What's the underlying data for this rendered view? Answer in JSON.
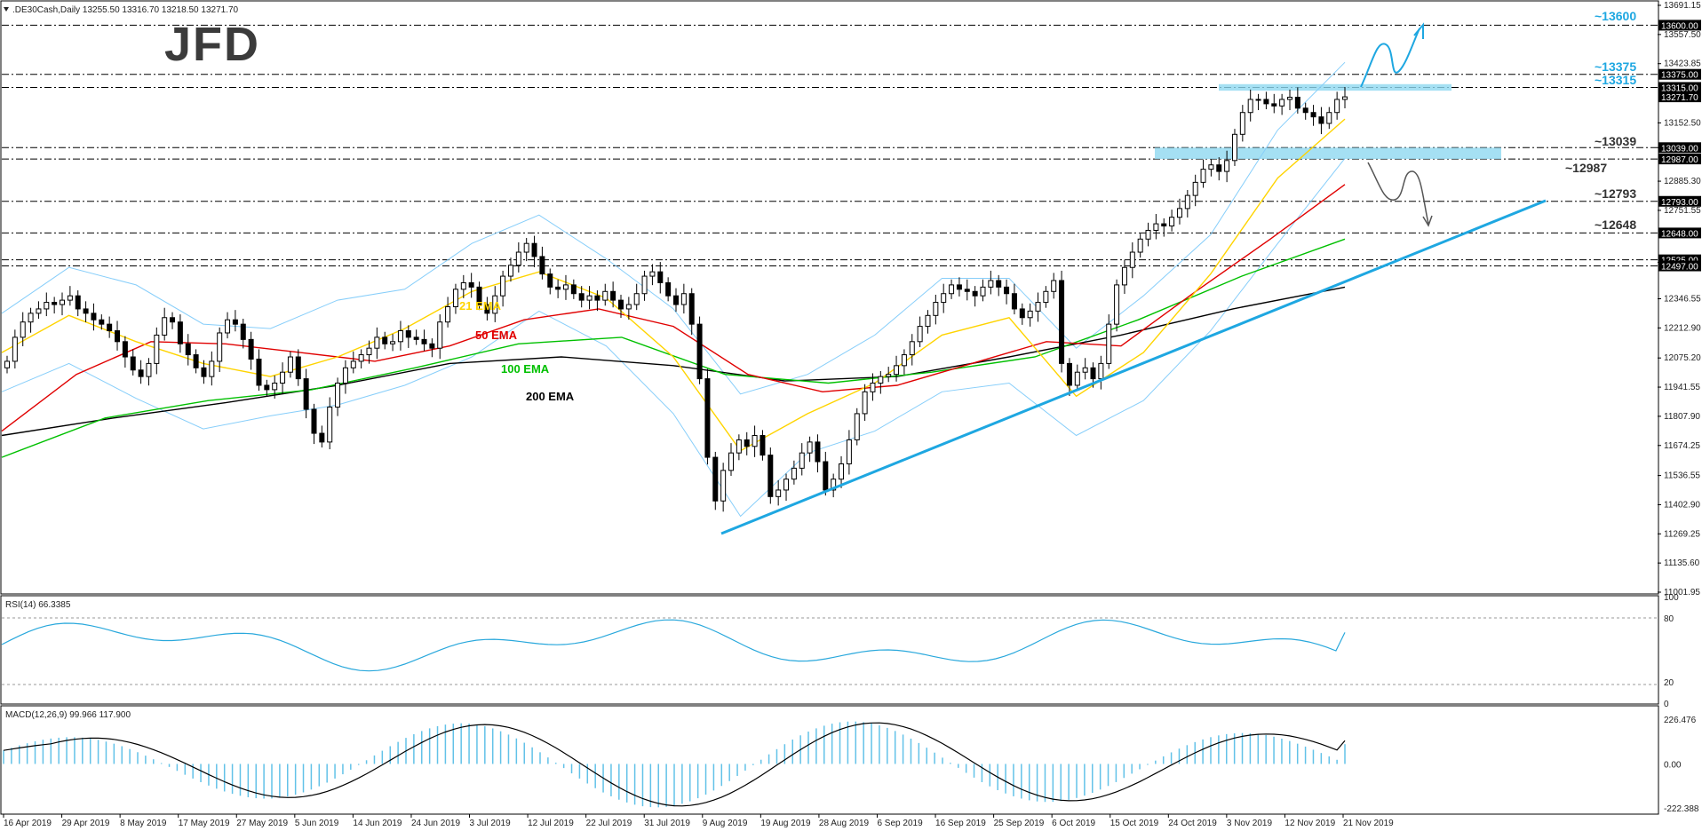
{
  "header": {
    "symbol_line": ".DE30Cash,Daily  13255.50 13316.70 13218.50 13271.70",
    "rsi_label": "RSI(14) 66.3385",
    "macd_label": "MACD(12,26,9) 99.966 117.900"
  },
  "logo": {
    "text": "JFD",
    "color": "#3b3b3b"
  },
  "colors": {
    "candle_up": "#ffffff",
    "candle_down": "#000000",
    "bollinger": "#87cefa",
    "ema21": "#ffd400",
    "ema50": "#e00000",
    "ema100": "#00c000",
    "ema200": "#000000",
    "trendline": "#1ea7e1",
    "zone": "#8fd8f0",
    "rsi_line": "#29a8dc",
    "macd_hist": "#62c2e8",
    "macd_signal": "#000000",
    "level_text": "#1ea7e1",
    "price_marker_bg": "#000000"
  },
  "price_axis": {
    "ticks": [
      "13691.15",
      "13557.50",
      "13423.85",
      "13152.50",
      "13039.00",
      "12885.30",
      "12751.55",
      "12513.45",
      "12346.55",
      "12212.90",
      "12075.20",
      "11941.55",
      "11807.90",
      "11674.25",
      "11536.55",
      "11402.90",
      "11269.25",
      "11135.60",
      "11001.95"
    ],
    "markers": [
      "13600.00",
      "13375.00",
      "13315.00",
      "13271.70",
      "13039.00",
      "12987.00",
      "12793.00",
      "12648.00",
      "12525.00",
      "12497.00"
    ],
    "ylim": [
      11001.95,
      13691.15
    ]
  },
  "rsi_axis": {
    "ticks": [
      "100",
      "80",
      "20",
      "0"
    ]
  },
  "macd_axis": {
    "ticks": [
      "226.476",
      "0.00",
      "-222.388"
    ]
  },
  "date_axis": {
    "labels": [
      "16 Apr 2019",
      "29 Apr 2019",
      "8 May 2019",
      "17 May 2019",
      "27 May 2019",
      "5 Jun 2019",
      "14 Jun 2019",
      "24 Jun 2019",
      "3 Jul 2019",
      "12 Jul 2019",
      "22 Jul 2019",
      "31 Jul 2019",
      "9 Aug 2019",
      "19 Aug 2019",
      "28 Aug 2019",
      "6 Sep 2019",
      "16 Sep 2019",
      "25 Sep 2019",
      "6 Oct 2019",
      "15 Oct 2019",
      "24 Oct 2019",
      "3 Nov 2019",
      "12 Nov 2019",
      "21 Nov 2019"
    ]
  },
  "levels": [
    "~13600",
    "~13375",
    "~13315",
    "~13039",
    "~12987",
    "~12793",
    "~12648"
  ],
  "ema_labels": [
    "21 EMA",
    "50 EMA",
    "100 EMA",
    "200 EMA"
  ],
  "chart_data": {
    "type": "candlestick",
    "title": ".DE30Cash,Daily",
    "ylim": [
      11001.95,
      13691.15
    ],
    "horizontal_levels": [
      13600,
      13375,
      13315,
      13039,
      12987,
      12793,
      12648,
      12525,
      12497
    ],
    "zones": [
      [
        13315,
        13330
      ],
      [
        12987,
        13039
      ]
    ],
    "close_series": [
      12060,
      12170,
      12240,
      12280,
      12300,
      12330,
      12320,
      12340,
      12360,
      12300,
      12280,
      12250,
      12230,
      12200,
      12150,
      12080,
      12020,
      11990,
      12050,
      12180,
      12260,
      12240,
      12140,
      12090,
      12030,
      11990,
      12060,
      12190,
      12250,
      12230,
      12160,
      12070,
      11950,
      11930,
      11960,
      12010,
      12080,
      11980,
      11840,
      11730,
      11690,
      11850,
      11960,
      12030,
      12060,
      12090,
      12120,
      12170,
      12140,
      12150,
      12200,
      12170,
      12160,
      12140,
      12120,
      12240,
      12310,
      12390,
      12420,
      12400,
      12320,
      12280,
      12360,
      12450,
      12500,
      12560,
      12600,
      12540,
      12460,
      12400,
      12390,
      12410,
      12370,
      12340,
      12360,
      12340,
      12380,
      12340,
      12300,
      12320,
      12370,
      12450,
      12470,
      12420,
      12360,
      12320,
      12370,
      12230,
      11980,
      11620,
      11420,
      11560,
      11640,
      11700,
      11670,
      11720,
      11630,
      11440,
      11470,
      11520,
      11570,
      11640,
      11690,
      11600,
      11470,
      11520,
      11590,
      11700,
      11820,
      11920,
      11960,
      11990,
      12000,
      12040,
      12090,
      12150,
      12220,
      12270,
      12330,
      12370,
      12410,
      12390,
      12380,
      12360,
      12400,
      12430,
      12400,
      12370,
      12300,
      12260,
      12290,
      12330,
      12380,
      12430,
      12050,
      11950,
      12010,
      12030,
      11980,
      12050,
      12230,
      12410,
      12490,
      12560,
      12620,
      12660,
      12690,
      12680,
      12720,
      12760,
      12820,
      12880,
      12940,
      12960,
      12930,
      12980,
      13100,
      13200,
      13260,
      13260,
      13240,
      13230,
      13260,
      13270,
      13220,
      13200,
      13180,
      13150,
      13200,
      13260,
      13271.7
    ],
    "ema21": [
      12100,
      12270,
      12150,
      12050,
      11990,
      12080,
      12210,
      12380,
      12470,
      12350,
      12080,
      11650,
      11820,
      11960,
      12180,
      12260,
      11900,
      12100,
      12460,
      12900,
      13170
    ],
    "ema50": [
      11740,
      12000,
      12150,
      12140,
      12100,
      12060,
      12130,
      12250,
      12300,
      12220,
      12000,
      11920,
      11950,
      12050,
      12150,
      12130,
      12380,
      12620,
      12870
    ],
    "ema100": [
      11620,
      11800,
      11880,
      11930,
      12030,
      12140,
      12170,
      12000,
      11960,
      12010,
      12080,
      12250,
      12450,
      12620
    ],
    "ema200": [
      11720,
      11800,
      11870,
      11950,
      12050,
      12080,
      12040,
      11970,
      11990,
      12080,
      12180,
      12300,
      12400
    ],
    "trendline": {
      "from": {
        "date": "9 Aug 2019",
        "value": 11290
      },
      "to": {
        "date": "beyond 21 Nov 2019",
        "value": 12890
      }
    },
    "rsi": {
      "last": 66.3385,
      "levels": [
        80,
        20
      ]
    },
    "macd": {
      "main": 99.966,
      "signal": 117.9,
      "ylim": [
        -222.388,
        226.476
      ]
    }
  }
}
